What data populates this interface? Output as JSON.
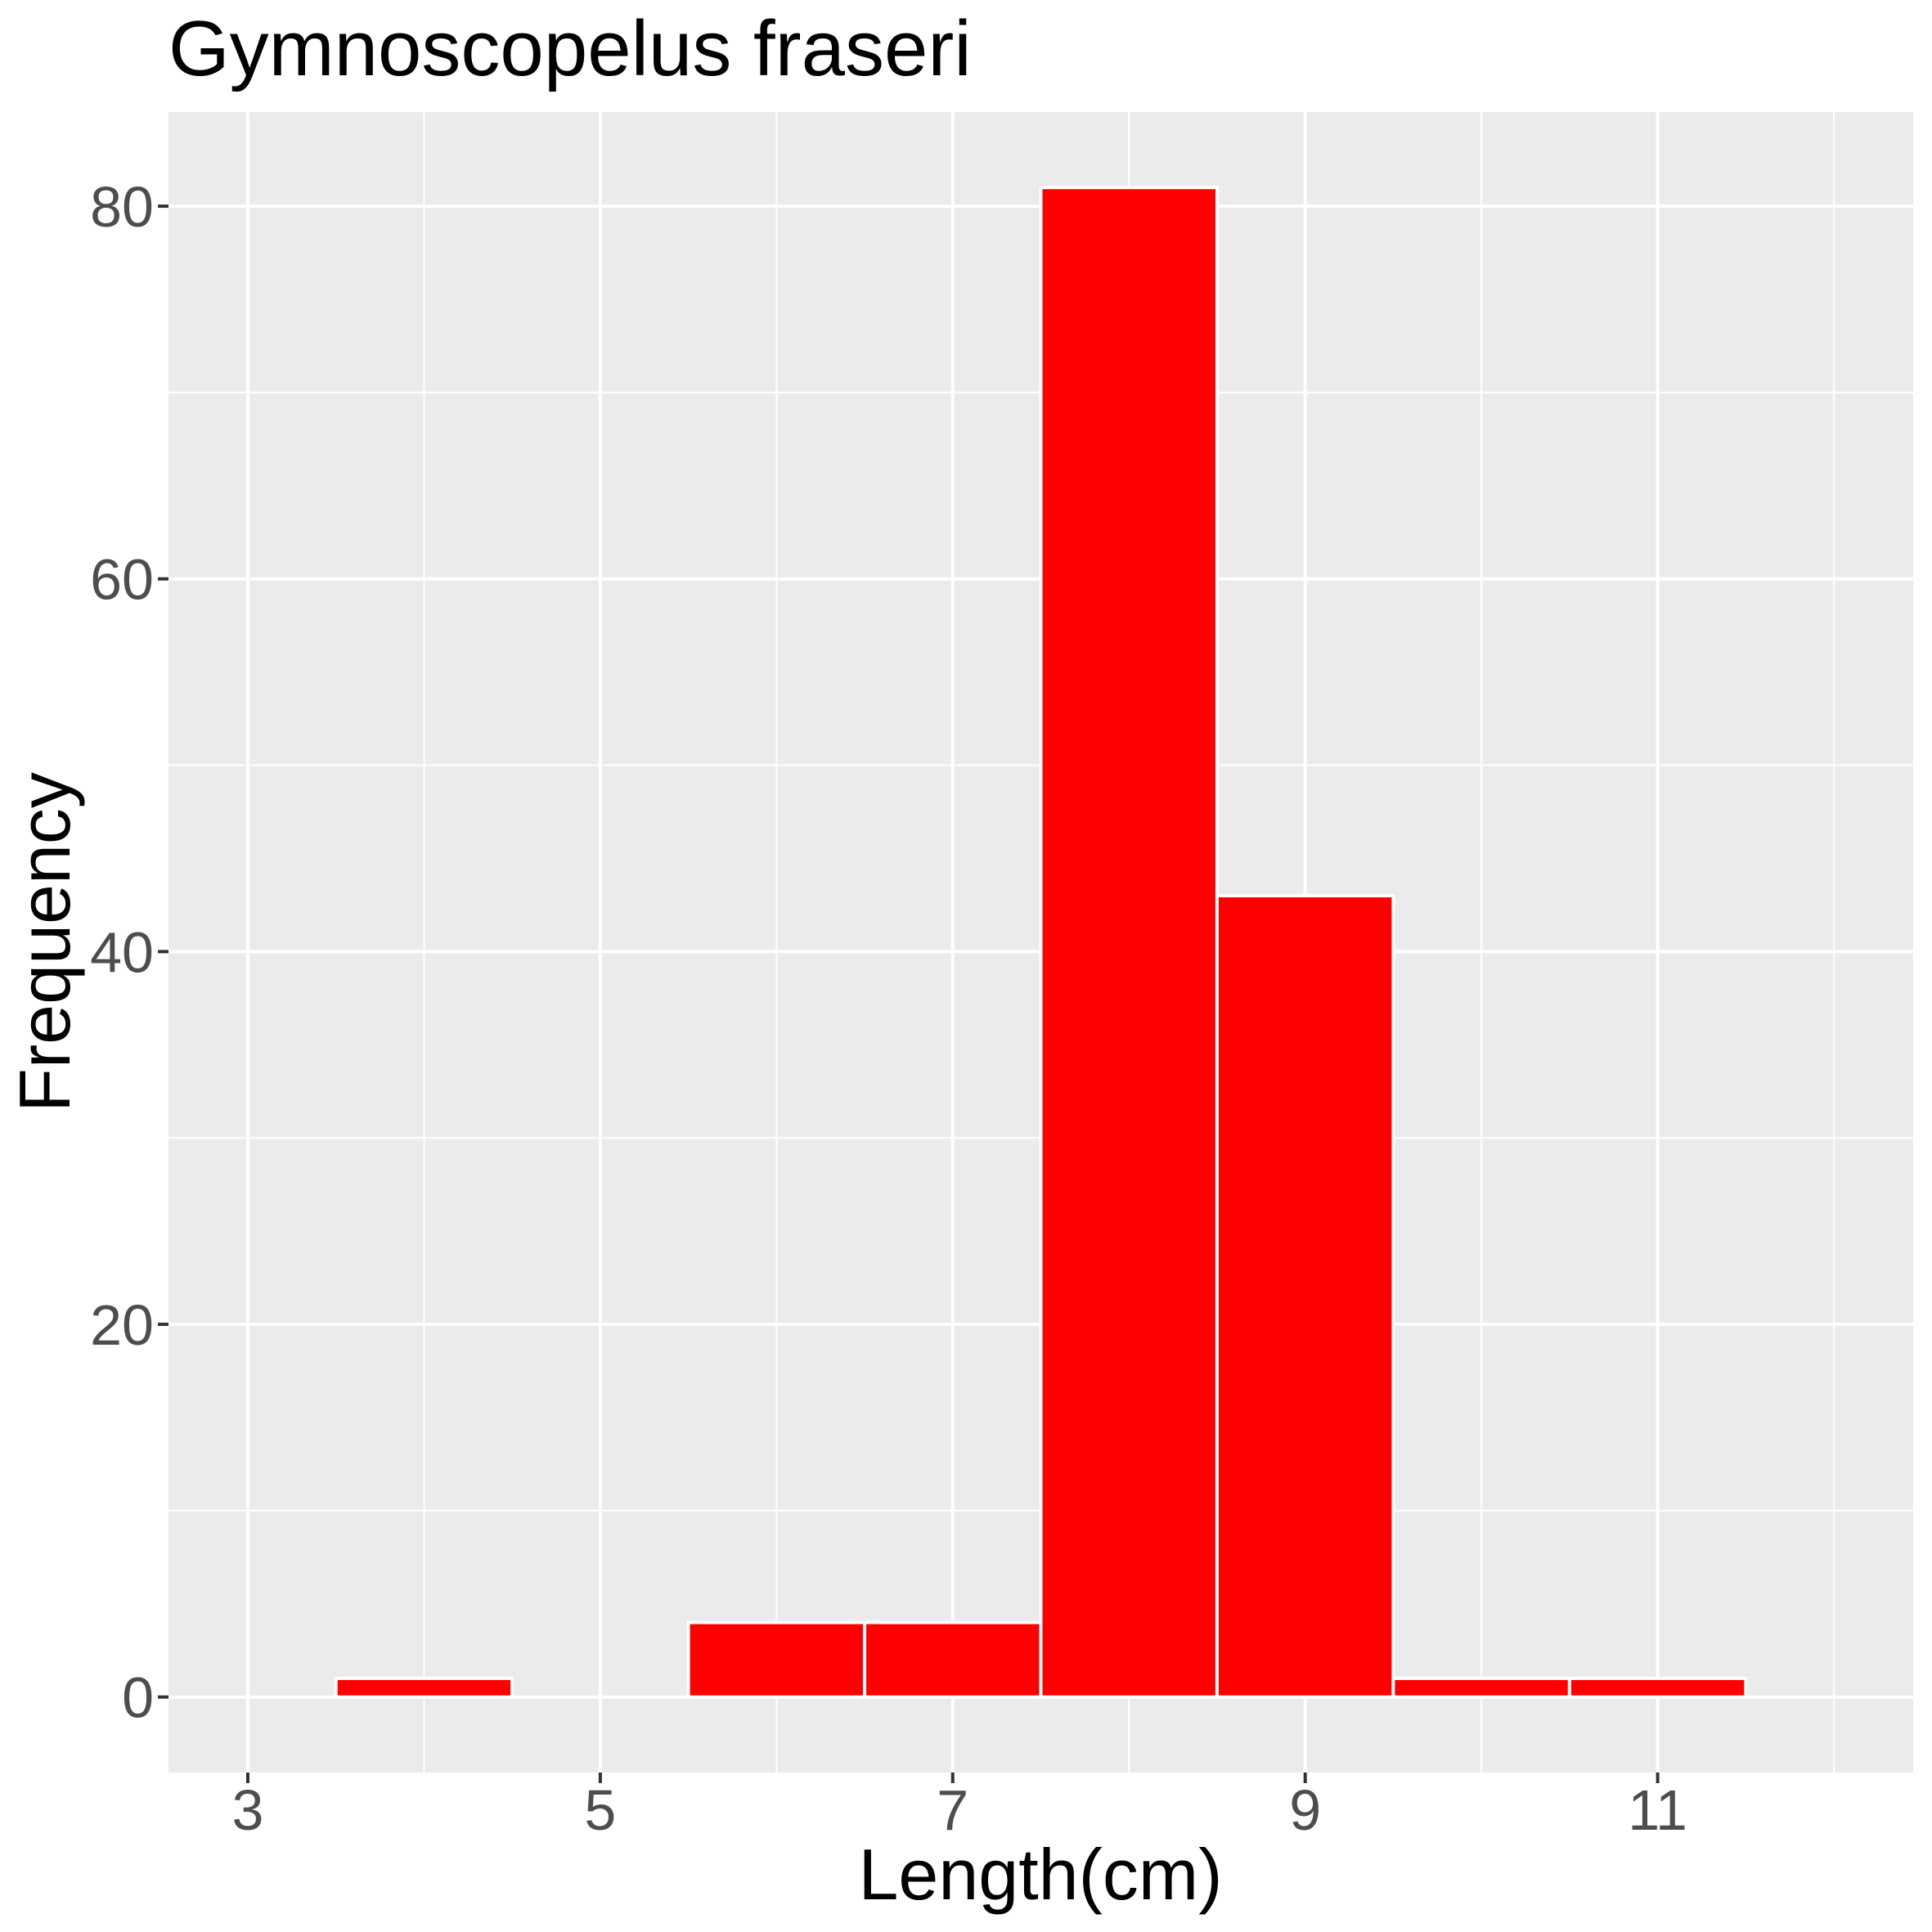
{
  "chart_data": {
    "type": "bar",
    "subtype": "histogram",
    "title": "Gymnoscopelus fraseri",
    "xlabel": "Length(cm)",
    "ylabel": "Frequency",
    "bin_width": 1,
    "bins": [
      {
        "center": 4,
        "range": [
          3.5,
          4.5
        ],
        "count": 1
      },
      {
        "center": 5,
        "range": [
          4.5,
          5.5
        ],
        "count": 0
      },
      {
        "center": 6,
        "range": [
          5.5,
          6.5
        ],
        "count": 4
      },
      {
        "center": 7,
        "range": [
          6.5,
          7.5
        ],
        "count": 4
      },
      {
        "center": 8,
        "range": [
          7.5,
          8.5
        ],
        "count": 81
      },
      {
        "center": 9,
        "range": [
          8.5,
          9.5
        ],
        "count": 43
      },
      {
        "center": 10,
        "range": [
          9.5,
          10.5
        ],
        "count": 1
      },
      {
        "center": 11,
        "range": [
          10.5,
          11.5
        ],
        "count": 1
      }
    ],
    "x_major_ticks": [
      3,
      5,
      7,
      9,
      11
    ],
    "x_tick_labels": [
      "3",
      "5",
      "7",
      "9",
      "11"
    ],
    "x_minor_gridlines": [
      4,
      6,
      8,
      10,
      12
    ],
    "y_major_ticks": [
      0,
      20,
      40,
      60,
      80
    ],
    "y_tick_labels": [
      "0",
      "20",
      "40",
      "60",
      "80"
    ],
    "y_minor_gridlines": [
      10,
      30,
      50,
      70
    ],
    "xlim": [
      2.55,
      12.45
    ],
    "ylim": [
      -4.05,
      85.05
    ],
    "grid": true,
    "legend_position": "none",
    "colors": {
      "bar_fill": "#FF0000",
      "bar_stroke": "#FFFFFF",
      "panel_background": "#EBEBEB",
      "gridline": "#FFFFFF",
      "tick_mark": "#333333",
      "tick_label": "#4D4D4D",
      "title": "#000000",
      "axis_title": "#000000",
      "plot_background": "#FFFFFF"
    }
  }
}
